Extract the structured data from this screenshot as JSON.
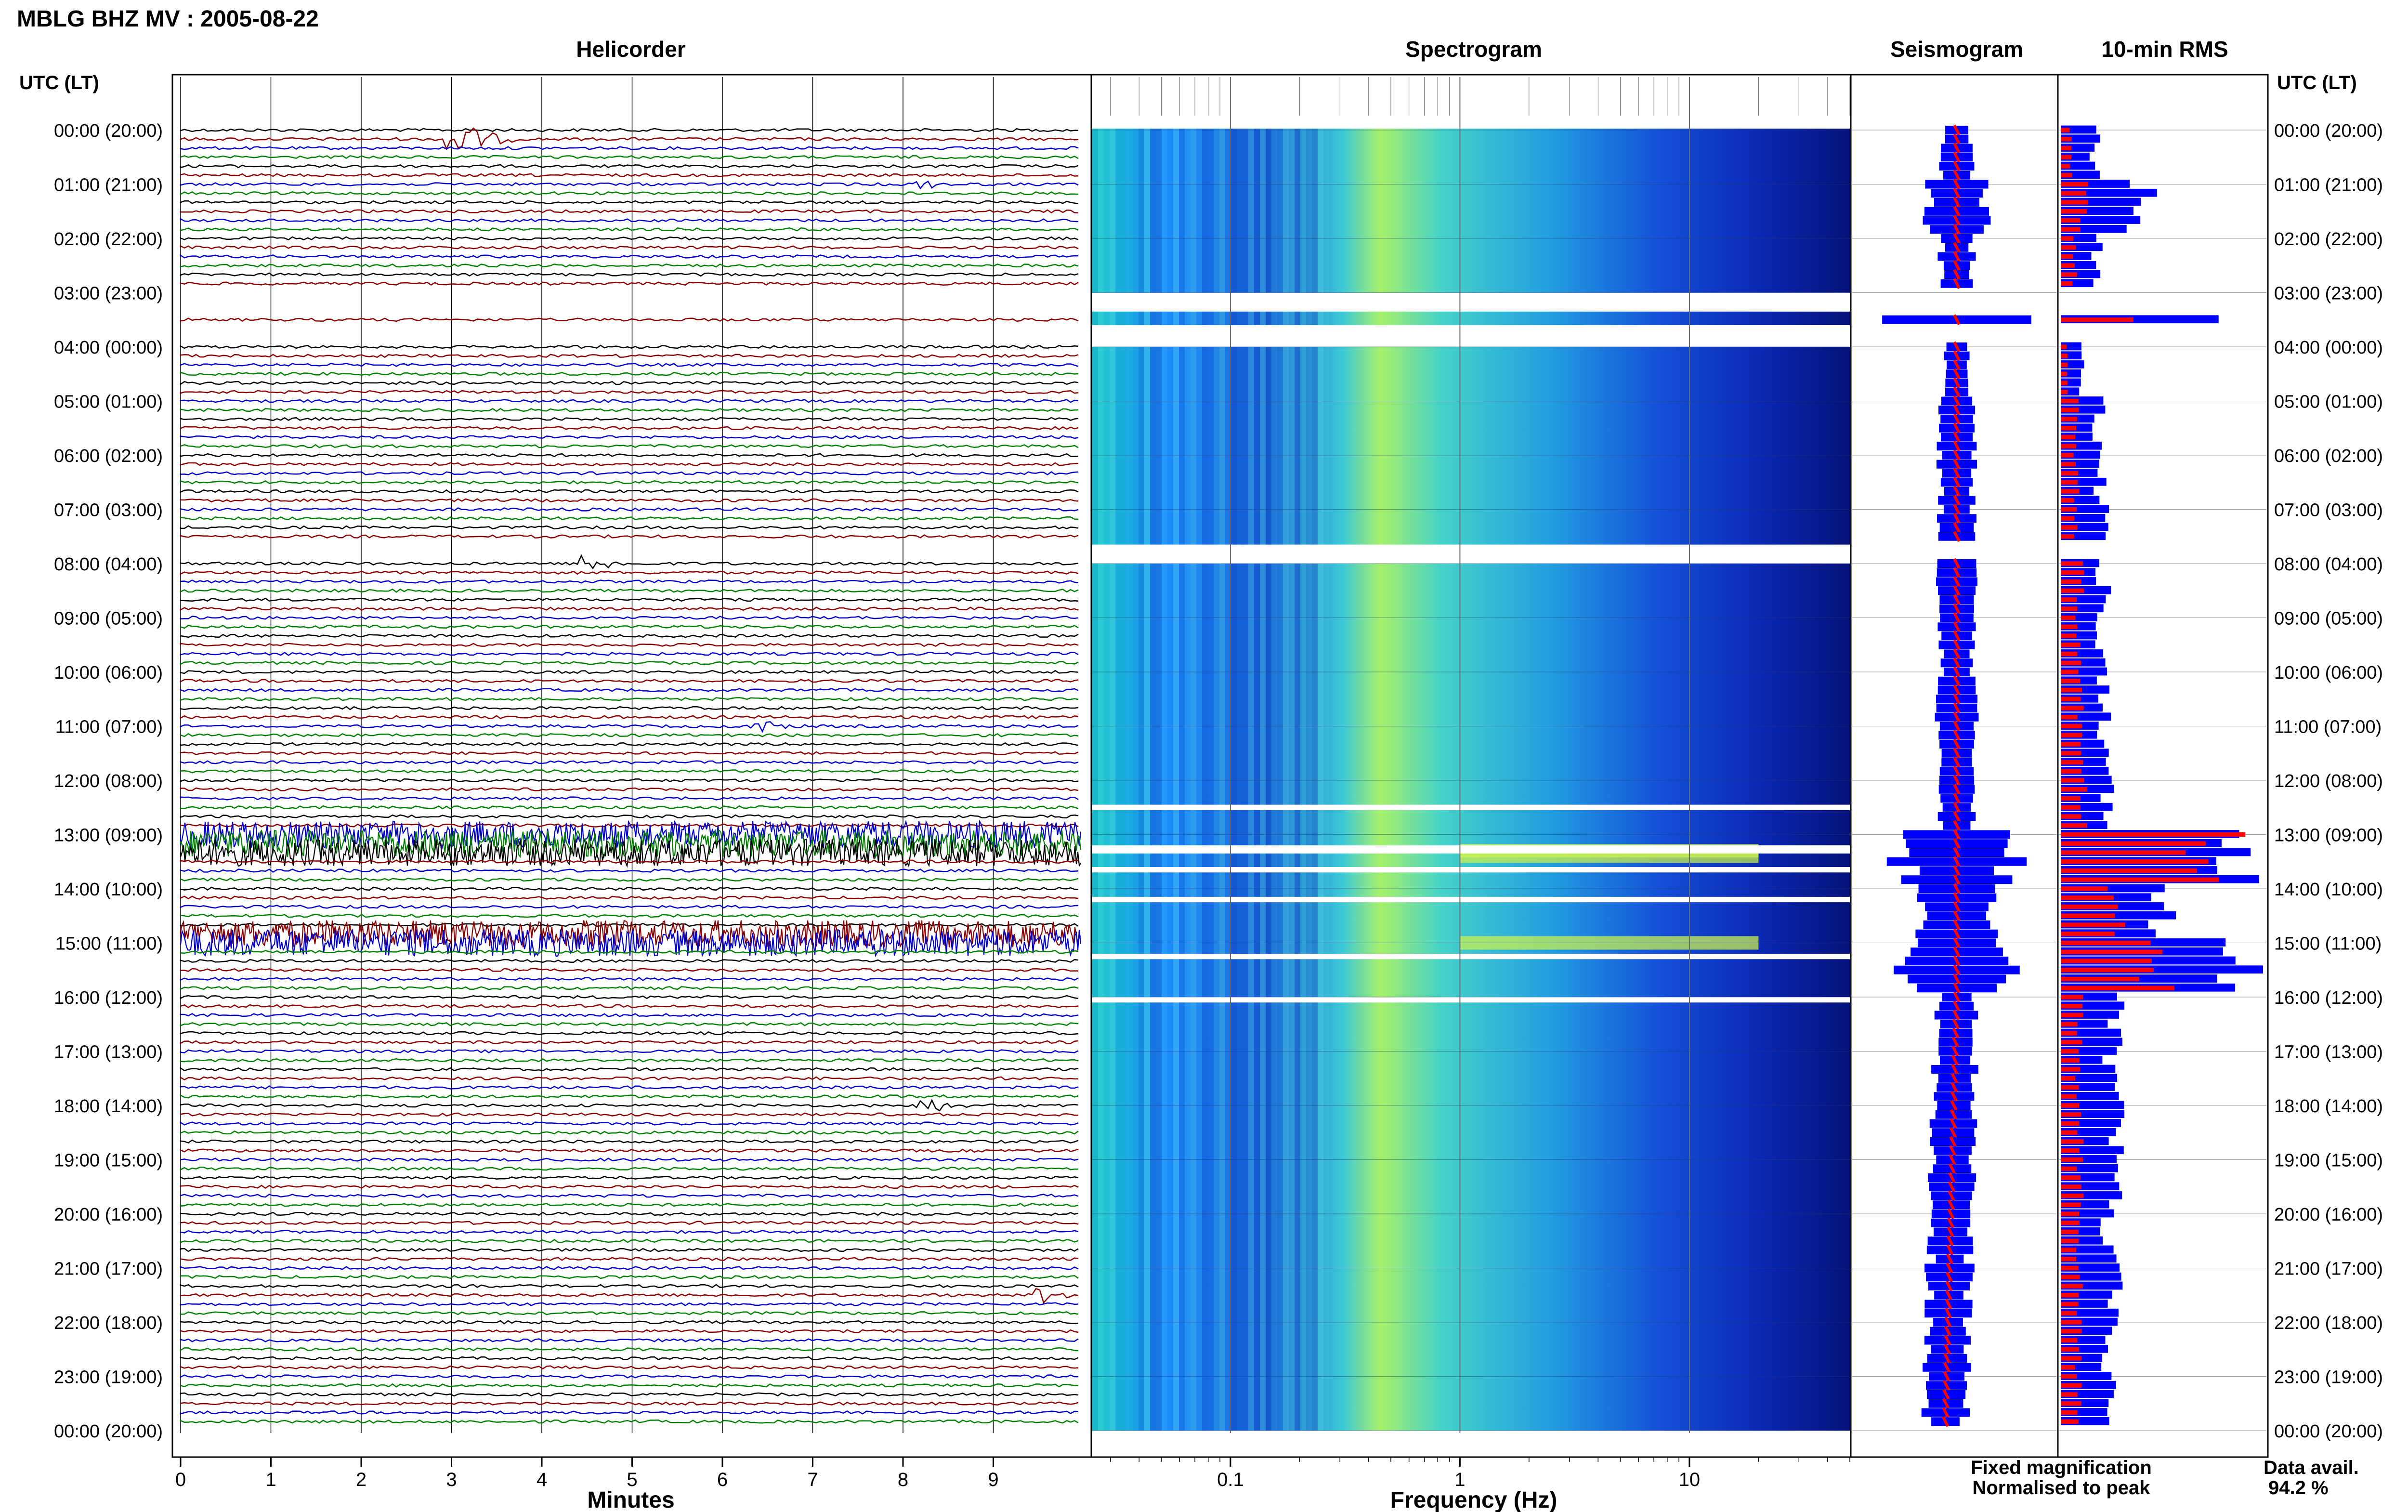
{
  "header": {
    "title": "MBLG BHZ MV : 2005-08-22",
    "utc_label_left": "UTC (LT)",
    "utc_label_right": "UTC (LT)"
  },
  "legend": {
    "fixed_label": "Fixed magnification",
    "fixed_color": "#0000ff",
    "normalised_label": "Normalised to peak",
    "normalised_color": "#ff0000",
    "data_avail_label": "Data avail.",
    "data_avail_value": "94.2 %"
  },
  "colors": {
    "trace_cycle": [
      "#000000",
      "#8b0000",
      "#0000cd",
      "#008000"
    ],
    "rms_fixed": "#0000ff",
    "rms_norm": "#ff0000"
  },
  "chart_data": [
    {
      "type": "line",
      "title": "Helicorder",
      "xlabel": "Minutes",
      "xlim": [
        0,
        10
      ],
      "xticks": [
        "0",
        "1",
        "2",
        "3",
        "4",
        "5",
        "6",
        "7",
        "8",
        "9"
      ],
      "row_labels": [
        "00:00 (20:00)",
        "01:00 (21:00)",
        "02:00 (22:00)",
        "03:00 (23:00)",
        "04:00 (00:00)",
        "05:00 (01:00)",
        "06:00 (02:00)",
        "07:00 (03:00)",
        "08:00 (04:00)",
        "09:00 (05:00)",
        "10:00 (06:00)",
        "11:00 (07:00)",
        "12:00 (08:00)",
        "13:00 (09:00)",
        "14:00 (10:00)",
        "15:00 (11:00)",
        "16:00 (12:00)",
        "17:00 (13:00)",
        "18:00 (14:00)",
        "19:00 (15:00)",
        "20:00 (16:00)",
        "21:00 (17:00)",
        "22:00 (18:00)",
        "23:00 (19:00)",
        "00:00 (20:00)"
      ],
      "trace_count": 144,
      "gaps": [
        {
          "start_hour": 3.0,
          "end_hour": 3.35
        },
        {
          "start_hour": 3.6,
          "end_hour": 4.0
        },
        {
          "start_hour": 7.65,
          "end_hour": 8.0
        }
      ],
      "events": [
        {
          "hour": 0.1,
          "minute": 3.0,
          "size": "large"
        },
        {
          "hour": 1.0,
          "minute": 8.2,
          "size": "small"
        },
        {
          "hour": 8.0,
          "minute": 4.5,
          "size": "medium"
        },
        {
          "hour": 11.0,
          "minute": 6.3,
          "size": "medium"
        },
        {
          "hour": 18.0,
          "minute": 8.2,
          "size": "medium"
        },
        {
          "hour": 21.5,
          "minute": 9.5,
          "size": "medium"
        }
      ],
      "tremor_hours": [
        13.05,
        13.15,
        13.25,
        14.9,
        15.0
      ]
    },
    {
      "type": "heatmap",
      "title": "Spectrogram",
      "xlabel": "Frequency (Hz)",
      "x_scale": "log",
      "xlim": [
        0.025,
        50
      ],
      "xticks": [
        "0.1",
        "1",
        "10"
      ],
      "gaps": [
        {
          "start_hour": 3.0,
          "end_hour": 3.35
        },
        {
          "start_hour": 3.6,
          "end_hour": 4.0
        },
        {
          "start_hour": 7.65,
          "end_hour": 8.0
        },
        {
          "start_hour": 12.45,
          "end_hour": 12.55
        },
        {
          "start_hour": 13.2,
          "end_hour": 13.35
        },
        {
          "start_hour": 13.6,
          "end_hour": 13.7
        },
        {
          "start_hour": 14.15,
          "end_hour": 14.25
        },
        {
          "start_hour": 15.2,
          "end_hour": 15.3
        },
        {
          "start_hour": 16.0,
          "end_hour": 16.1
        }
      ]
    },
    {
      "type": "line",
      "title": "Seismogram",
      "note_series": [
        "Fixed magnification",
        "Normalised to peak"
      ]
    },
    {
      "type": "bar",
      "title": "10-min RMS",
      "orientation": "horizontal",
      "bins": 144,
      "series": [
        {
          "name": "Fixed magnification",
          "relative_values_hourly": [
            0.18,
            0.42,
            0.18,
            0.95,
            0.1,
            0.2,
            0.2,
            0.22,
            0.22,
            0.2,
            0.22,
            0.22,
            0.24,
            0.9,
            0.5,
            1.0,
            0.28,
            0.25,
            0.3,
            0.28,
            0.24,
            0.27,
            0.25,
            0.25
          ]
        },
        {
          "name": "Normalised to peak",
          "relative_values_hourly": [
            0.05,
            0.12,
            0.07,
            0.35,
            0.03,
            0.08,
            0.08,
            0.08,
            0.1,
            0.09,
            0.1,
            0.1,
            0.12,
            0.8,
            0.3,
            0.5,
            0.1,
            0.09,
            0.1,
            0.1,
            0.09,
            0.1,
            0.09,
            0.09
          ]
        }
      ]
    }
  ]
}
